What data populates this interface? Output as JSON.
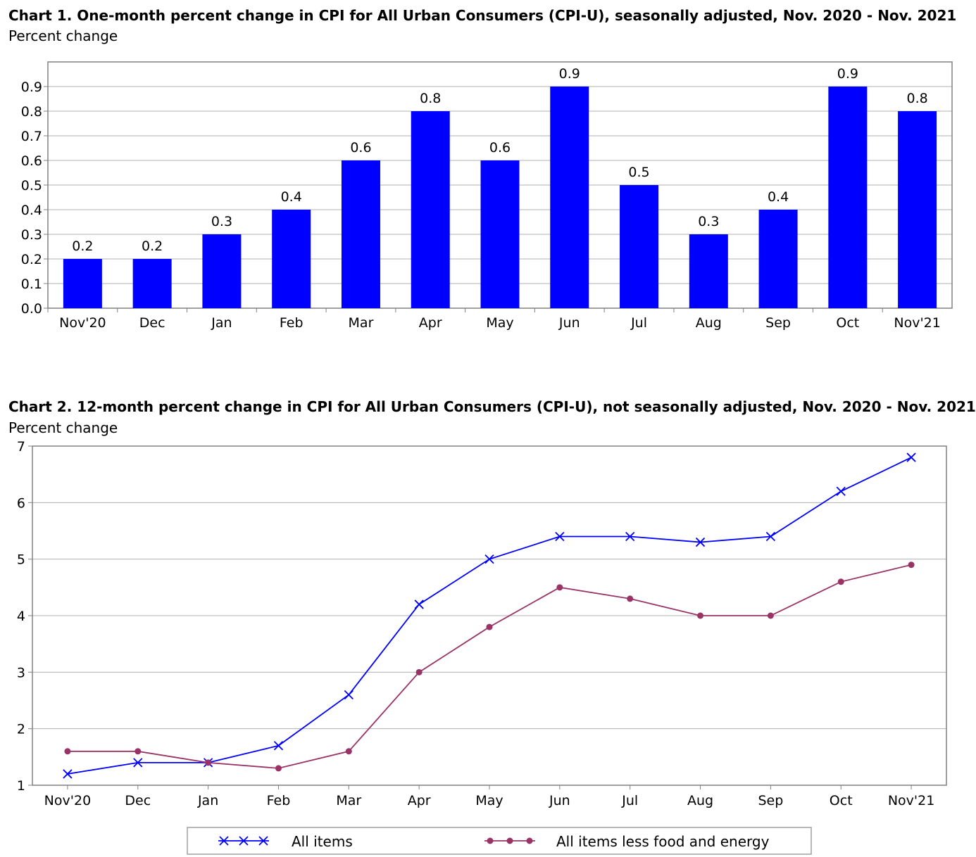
{
  "chart_data": [
    {
      "type": "bar",
      "title": "Chart 1. One-month percent change in CPI for All Urban Consumers (CPI-U), seasonally adjusted, Nov. 2020 - Nov. 2021",
      "ylabel": "Percent change",
      "categories": [
        "Nov'20",
        "Dec",
        "Jan",
        "Feb",
        "Mar",
        "Apr",
        "May",
        "Jun",
        "Jul",
        "Aug",
        "Sep",
        "Oct",
        "Nov'21"
      ],
      "values": [
        0.2,
        0.2,
        0.3,
        0.4,
        0.6,
        0.8,
        0.6,
        0.9,
        0.5,
        0.3,
        0.4,
        0.9,
        0.8
      ],
      "data_labels": [
        "0.2",
        "0.2",
        "0.3",
        "0.4",
        "0.6",
        "0.8",
        "0.6",
        "0.9",
        "0.5",
        "0.3",
        "0.4",
        "0.9",
        "0.8"
      ],
      "ylim": [
        0,
        1.0
      ],
      "yticks": [
        "0.0",
        "0.1",
        "0.2",
        "0.3",
        "0.4",
        "0.5",
        "0.6",
        "0.7",
        "0.8",
        "0.9"
      ],
      "grid": true,
      "bar_color": "#0000ff"
    },
    {
      "type": "line",
      "title": "Chart 2. 12-month percent change in CPI for All Urban Consumers (CPI-U), not seasonally adjusted, Nov. 2020 - Nov. 2021",
      "ylabel": "Percent change",
      "categories": [
        "Nov'20",
        "Dec",
        "Jan",
        "Feb",
        "Mar",
        "Apr",
        "May",
        "Jun",
        "Jul",
        "Aug",
        "Sep",
        "Oct",
        "Nov'21"
      ],
      "series": [
        {
          "name": "All items",
          "values": [
            1.2,
            1.4,
            1.4,
            1.7,
            2.6,
            4.2,
            5.0,
            5.4,
            5.4,
            5.3,
            5.4,
            6.2,
            6.8
          ],
          "color": "#0000ff",
          "marker": "x"
        },
        {
          "name": "All items less food and energy",
          "values": [
            1.6,
            1.6,
            1.4,
            1.3,
            1.6,
            3.0,
            3.8,
            4.5,
            4.3,
            4.0,
            4.0,
            4.6,
            4.9
          ],
          "color": "#993366",
          "marker": "circle"
        }
      ],
      "ylim": [
        1,
        7
      ],
      "yticks": [
        "1",
        "2",
        "3",
        "4",
        "5",
        "6",
        "7"
      ],
      "grid": true,
      "legend": "bottom"
    }
  ]
}
